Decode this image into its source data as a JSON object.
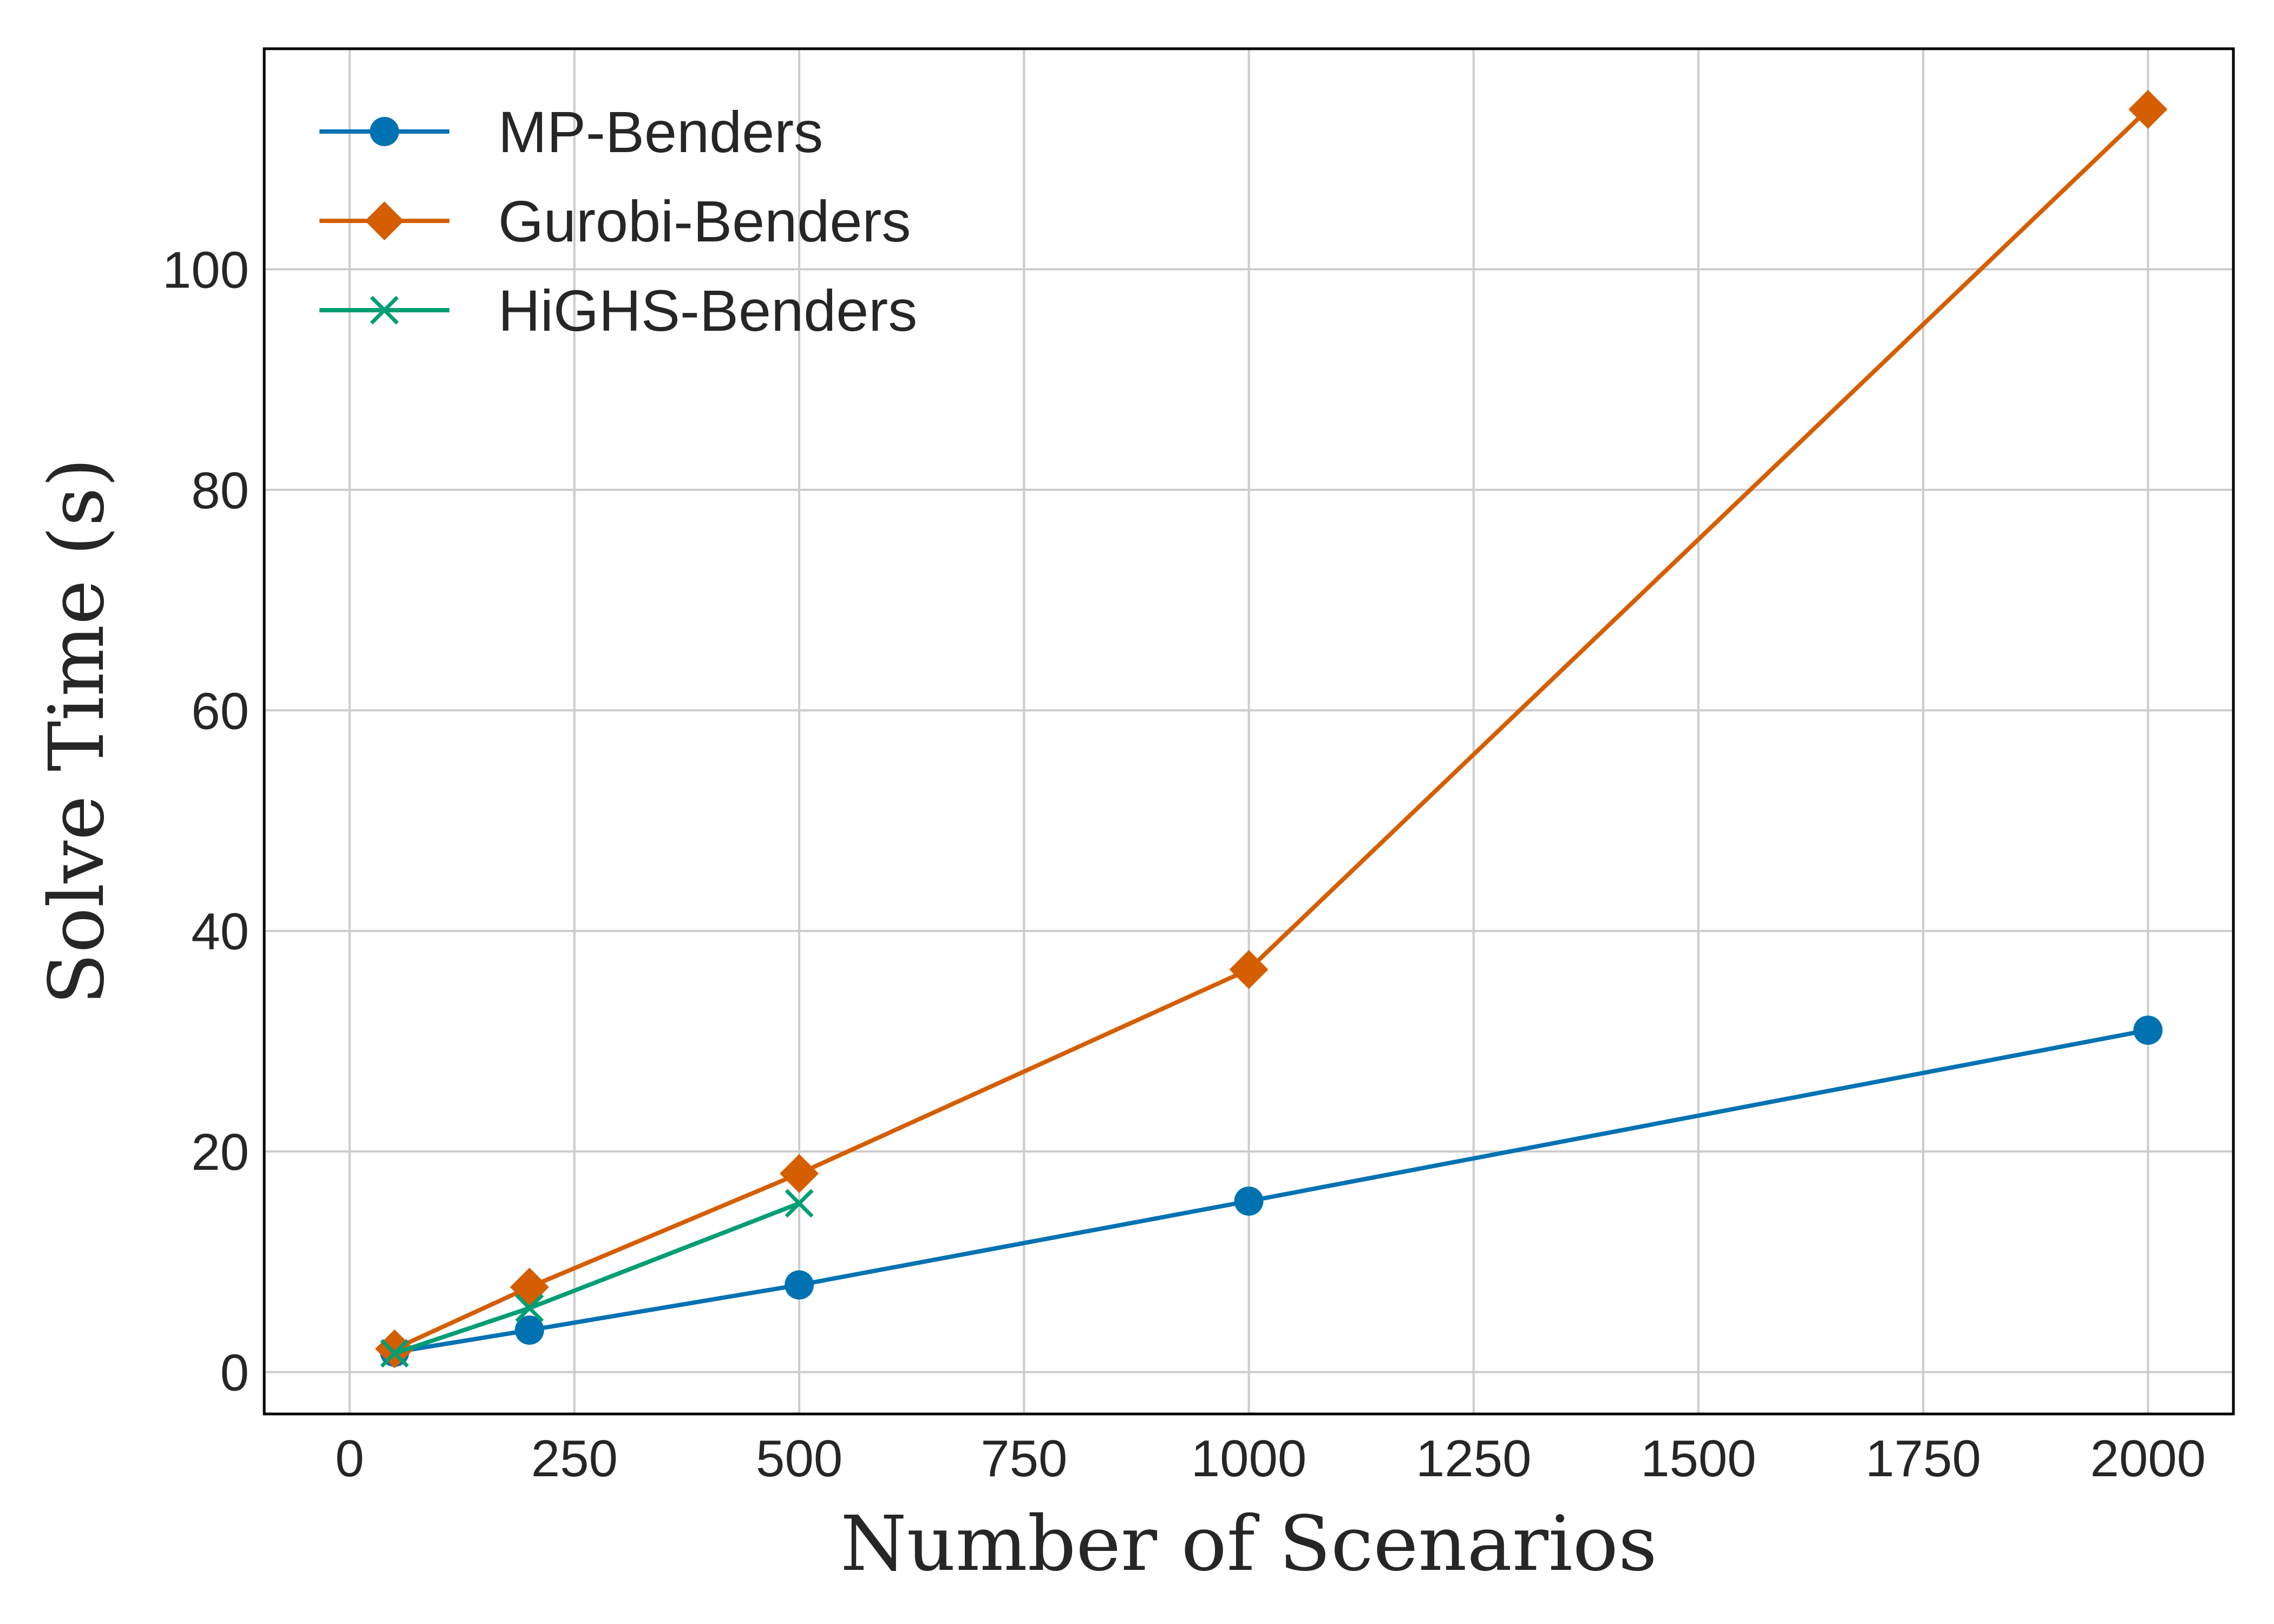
{
  "chart_data": {
    "type": "line",
    "title": "",
    "xlabel": "Number of Scenarios",
    "ylabel": "Solve Time (s)",
    "xlim": [
      -95,
      2095
    ],
    "ylim": [
      -3.8,
      120
    ],
    "xticks": [
      0,
      250,
      500,
      750,
      1000,
      1250,
      1500,
      1750,
      2000
    ],
    "yticks": [
      0,
      20,
      40,
      60,
      80,
      100
    ],
    "grid": true,
    "legend_position": "top-left",
    "series": [
      {
        "name": "MP-Benders",
        "color": "#0072b2",
        "marker": "circle",
        "x": [
          50,
          200,
          500,
          1000,
          2000
        ],
        "y": [
          1.8,
          3.8,
          7.9,
          15.5,
          31.0
        ]
      },
      {
        "name": "Gurobi-Benders",
        "color": "#d55e00",
        "marker": "diamond",
        "x": [
          50,
          200,
          500,
          1000,
          2000
        ],
        "y": [
          2.1,
          7.7,
          18.0,
          36.5,
          114.5
        ]
      },
      {
        "name": "HiGHS-Benders",
        "color": "#009e73",
        "marker": "x",
        "x": [
          50,
          200,
          500
        ],
        "y": [
          1.7,
          5.8,
          15.3
        ]
      }
    ]
  }
}
